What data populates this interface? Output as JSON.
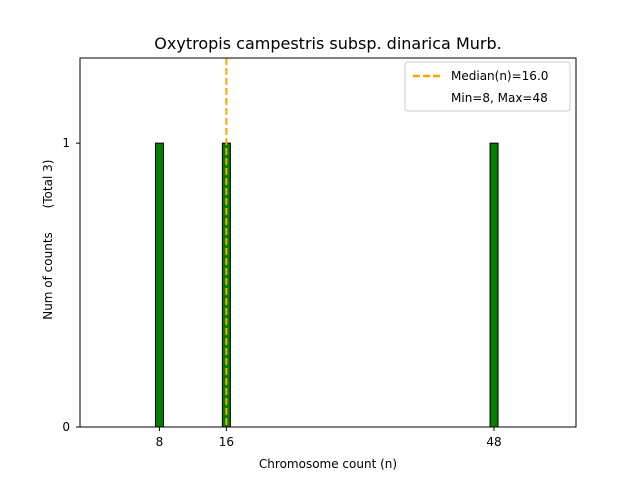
{
  "chart_data": {
    "type": "bar",
    "title": "Oxytropis campestris subsp. dinarica Murb.",
    "xlabel": "Chromosome count (n)",
    "ylabel": "Num of counts",
    "ylabel_secondary": "(Total 3)",
    "x": [
      8,
      16,
      48
    ],
    "values": [
      1,
      1,
      1
    ],
    "xlim": [
      -1.5,
      57.8
    ],
    "ylim": [
      0,
      1.3
    ],
    "xticks": [
      "8",
      "16",
      "48"
    ],
    "yticks": [
      "0",
      "1"
    ],
    "bar_color": "#008000",
    "bar_edge_color": "#000000",
    "median": 16.0,
    "median_color": "#FFA500",
    "legend_position": "top-right",
    "legend": {
      "median_label": "Median(n)=16.0",
      "range_label": "Min=8, Max=48"
    },
    "grid": false
  }
}
